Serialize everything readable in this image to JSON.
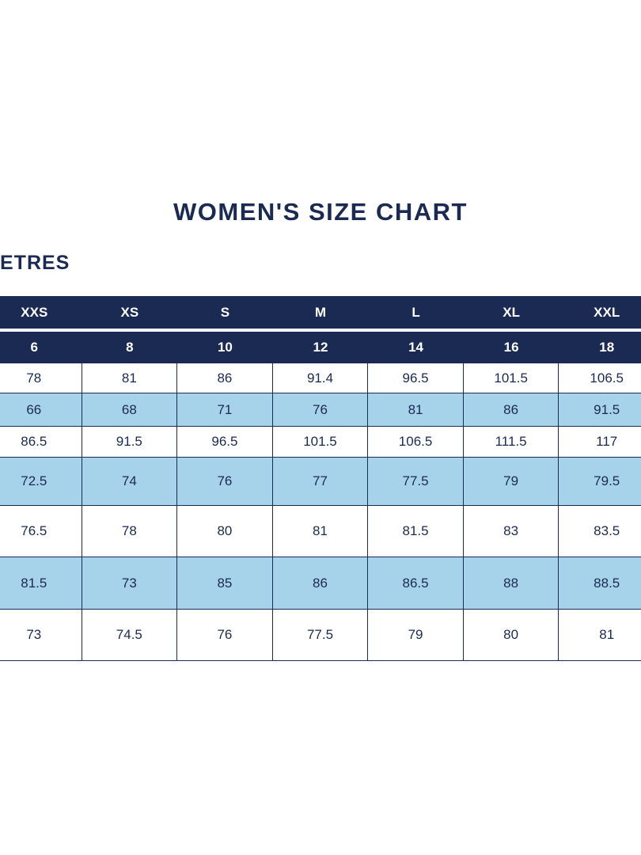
{
  "page": {
    "title": "WOMEN'S SIZE CHART",
    "units_label_visible": "ETRES"
  },
  "chart_data": {
    "type": "table",
    "title": "WOMEN'S SIZE CHART",
    "size_headers": [
      "XXS",
      "XS",
      "S",
      "M",
      "L",
      "XL",
      "XXL"
    ],
    "numeric_headers": [
      "6",
      "8",
      "10",
      "12",
      "14",
      "16",
      "18"
    ],
    "rows": [
      [
        "78",
        "81",
        "86",
        "91.4",
        "96.5",
        "101.5",
        "106.5"
      ],
      [
        "66",
        "68",
        "71",
        "76",
        "81",
        "86",
        "91.5"
      ],
      [
        "86.5",
        "91.5",
        "96.5",
        "101.5",
        "106.5",
        "111.5",
        "117"
      ],
      [
        "72.5",
        "74",
        "76",
        "77",
        "77.5",
        "79",
        "79.5"
      ],
      [
        "76.5",
        "78",
        "80",
        "81",
        "81.5",
        "83",
        "83.5"
      ],
      [
        "81.5",
        "73",
        "85",
        "86",
        "86.5",
        "88",
        "88.5"
      ],
      [
        "73",
        "74.5",
        "76",
        "77.5",
        "79",
        "80",
        "81"
      ]
    ],
    "colors": {
      "header_bg": "#1b2a52",
      "header_text": "#ffffff",
      "stripe_row_bg": "#a6d3ea",
      "plain_row_bg": "#ffffff",
      "cell_text": "#1b2a52"
    },
    "layout_hints": {
      "grid": "on",
      "stripe_pattern": "even rows light blue",
      "left_edge_cut_off": true
    }
  }
}
